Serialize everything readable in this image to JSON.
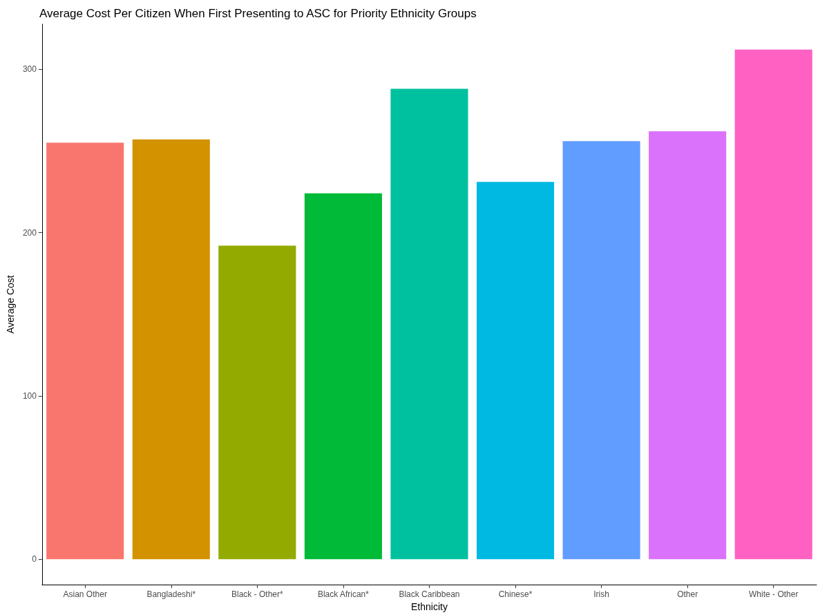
{
  "chart_data": {
    "type": "bar",
    "title": "Average Cost Per Citizen When First Presenting to ASC for Priority Ethnicity Groups",
    "xlabel": "Ethnicity",
    "ylabel": "Average Cost",
    "categories": [
      "Asian Other",
      "Bangladeshi*",
      "Black - Other*",
      "Black African*",
      "Black Caribbean",
      "Chinese*",
      "Irish",
      "Other",
      "White - Other"
    ],
    "values": [
      255,
      257,
      192,
      224,
      288,
      231,
      256,
      262,
      312
    ],
    "colors": [
      "#f8766d",
      "#d39200",
      "#93aa00",
      "#00ba38",
      "#00c19f",
      "#00b9e3",
      "#619cff",
      "#db72fb",
      "#ff61c3"
    ],
    "ylim": [
      -15.6,
      327.6
    ],
    "yticks": [
      0,
      100,
      200,
      300
    ],
    "grid": false
  }
}
